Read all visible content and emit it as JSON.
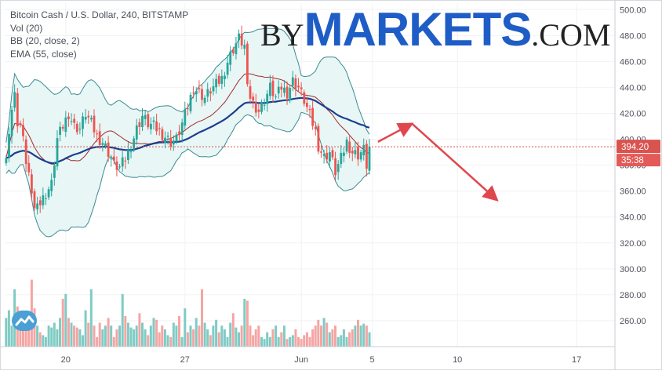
{
  "legend": {
    "title": "Bitcoin Cash / U.S. Dollar, 240, BITSTAMP",
    "vol": "Vol (20)",
    "bb": "BB (20, close, 2)",
    "ema": "EMA (55, close)"
  },
  "brand": {
    "by": "BY",
    "markets": "MARKETS",
    "com": ".COM"
  },
  "price_badge": {
    "price": "394.20",
    "countdown": "35:38"
  },
  "colors": {
    "up": "#26a69a",
    "down": "#ef5350",
    "vol_up": "#80cbc4",
    "vol_down": "#f4a6a4",
    "band_line": "#3a8c94",
    "band_fill": "#e8f6f5",
    "basis": "#a52a2a",
    "ema": "#1b3f8f",
    "arrow": "#e0474c",
    "price_line": "#d9534f"
  },
  "icons": {
    "platform_logo": "cloud-chart-icon"
  },
  "chart_data": {
    "type": "candlestick",
    "ylim": [
      240,
      505
    ],
    "y_ticks": [
      260,
      280,
      300,
      320,
      340,
      360,
      380,
      400,
      420,
      440,
      460,
      480,
      500
    ],
    "y_tick_labels": [
      "260.00",
      "280.00",
      "300.00",
      "320.00",
      "340.00",
      "360.00",
      "380.00",
      "400.00",
      "420.00",
      "440.00",
      "460.00",
      "480.00",
      "500.00"
    ],
    "x_ticks": [
      {
        "label": "20",
        "index": 21
      },
      {
        "label": "27",
        "index": 63
      },
      {
        "label": "Jun",
        "index": 104
      },
      {
        "label": "5",
        "index": 129
      },
      {
        "label": "10",
        "index": 159
      },
      {
        "label": "17",
        "index": 201
      }
    ],
    "n_slots": 215,
    "current_price": 394.2,
    "anchors": [
      [
        0,
        390
      ],
      [
        2,
        420
      ],
      [
        3,
        440
      ],
      [
        4,
        410
      ],
      [
        6,
        405
      ],
      [
        7,
        380
      ],
      [
        9,
        360
      ],
      [
        10,
        345
      ],
      [
        11,
        355
      ],
      [
        12,
        350
      ],
      [
        14,
        358
      ],
      [
        16,
        365
      ],
      [
        18,
        400
      ],
      [
        20,
        410
      ],
      [
        22,
        420
      ],
      [
        24,
        410
      ],
      [
        26,
        408
      ],
      [
        28,
        420
      ],
      [
        30,
        412
      ],
      [
        32,
        402
      ],
      [
        34,
        398
      ],
      [
        36,
        390
      ],
      [
        38,
        380
      ],
      [
        40,
        378
      ],
      [
        42,
        385
      ],
      [
        44,
        395
      ],
      [
        46,
        408
      ],
      [
        48,
        418
      ],
      [
        50,
        412
      ],
      [
        52,
        410
      ],
      [
        54,
        406
      ],
      [
        56,
        402
      ],
      [
        58,
        398
      ],
      [
        60,
        400
      ],
      [
        62,
        412
      ],
      [
        64,
        425
      ],
      [
        66,
        440
      ],
      [
        68,
        436
      ],
      [
        70,
        432
      ],
      [
        72,
        438
      ],
      [
        74,
        442
      ],
      [
        76,
        447
      ],
      [
        78,
        460
      ],
      [
        80,
        470
      ],
      [
        82,
        478
      ],
      [
        84,
        472
      ],
      [
        85,
        438
      ],
      [
        87,
        428
      ],
      [
        89,
        422
      ],
      [
        91,
        430
      ],
      [
        93,
        440
      ],
      [
        95,
        432
      ],
      [
        97,
        440
      ],
      [
        99,
        436
      ],
      [
        101,
        445
      ],
      [
        103,
        440
      ],
      [
        105,
        430
      ],
      [
        107,
        418
      ],
      [
        109,
        406
      ],
      [
        110,
        395
      ],
      [
        112,
        386
      ],
      [
        114,
        390
      ],
      [
        116,
        375
      ],
      [
        118,
        385
      ],
      [
        120,
        398
      ],
      [
        122,
        390
      ],
      [
        124,
        388
      ],
      [
        126,
        392
      ],
      [
        127,
        380
      ],
      [
        128,
        394.2
      ]
    ],
    "volume": {
      "ylim": [
        240,
        340
      ],
      "bars": [
        270,
        278,
        262,
        300,
        282,
        275,
        262,
        265,
        275,
        310,
        280,
        262,
        255,
        252,
        250,
        262,
        260,
        265,
        258,
        270,
        290,
        295,
        270,
        265,
        262,
        260,
        258,
        252,
        278,
        265,
        300,
        262,
        250,
        265,
        258,
        262,
        270,
        262,
        250,
        258,
        262,
        295,
        272,
        265,
        260,
        258,
        262,
        275,
        265,
        258,
        252,
        262,
        270,
        268,
        255,
        262,
        258,
        252,
        250,
        265,
        262,
        272,
        250,
        280,
        255,
        262,
        258,
        270,
        262,
        300,
        265,
        258,
        252,
        262,
        268,
        255,
        262,
        258,
        250,
        265,
        275,
        260,
        255,
        262,
        290,
        288,
        262,
        252,
        258,
        262,
        250,
        248,
        255,
        250,
        258,
        262,
        250,
        255,
        262,
        248,
        250,
        252,
        258,
        250,
        248,
        252,
        255,
        250,
        258,
        262,
        268,
        262,
        270,
        265,
        255,
        258,
        262,
        250,
        252,
        258,
        250,
        255,
        258,
        262,
        268,
        262,
        264,
        262,
        255,
        260
      ]
    },
    "annotations": {
      "arrows": [
        {
          "from_index": 131,
          "from_y": 398,
          "to_index": 143,
          "to_y": 412
        },
        {
          "from_index": 143,
          "from_y": 412,
          "to_index": 173,
          "to_y": 353
        }
      ]
    }
  }
}
